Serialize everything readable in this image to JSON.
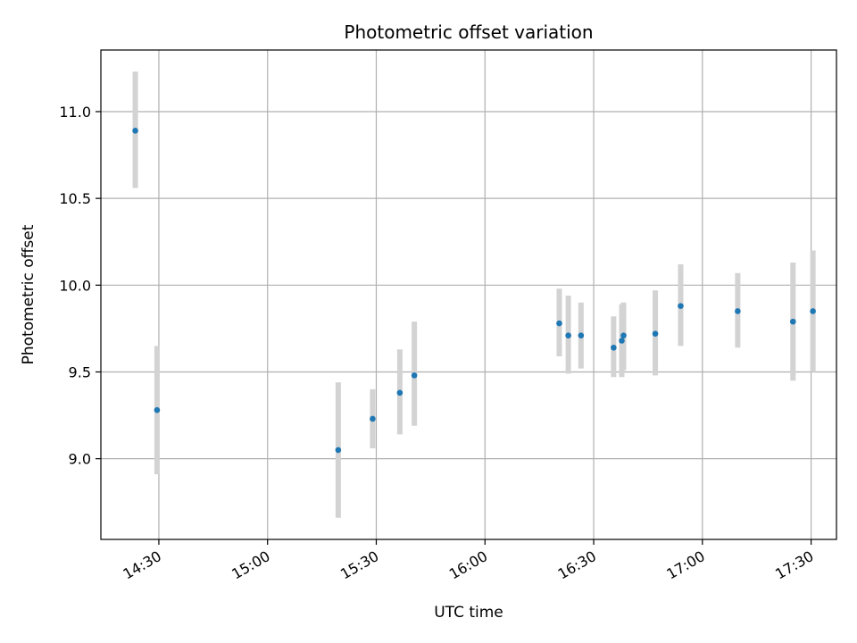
{
  "chart_data": {
    "type": "scatter",
    "title": "Photometric offset variation",
    "xlabel": "UTC time",
    "ylabel": "Photometric offset",
    "x_tick_labels": [
      "14:30",
      "15:00",
      "15:30",
      "16:00",
      "16:30",
      "17:00",
      "17:30"
    ],
    "y_tick_labels": [
      "9.0",
      "9.5",
      "10.0",
      "10.5",
      "11.0"
    ],
    "grid": true,
    "colors": {
      "marker": "#1f77b4",
      "errorbar": "#d3d3d3",
      "grid": "#b0b0b0"
    },
    "points": [
      {
        "x": "14:23:30",
        "y": 10.89,
        "ylow": 10.56,
        "yhigh": 11.23
      },
      {
        "x": "14:29:30",
        "y": 9.28,
        "ylow": 8.91,
        "yhigh": 9.65
      },
      {
        "x": "15:19:30",
        "y": 9.05,
        "ylow": 8.66,
        "yhigh": 9.44
      },
      {
        "x": "15:29:00",
        "y": 9.23,
        "ylow": 9.06,
        "yhigh": 9.4
      },
      {
        "x": "15:36:30",
        "y": 9.38,
        "ylow": 9.14,
        "yhigh": 9.63
      },
      {
        "x": "15:40:30",
        "y": 9.48,
        "ylow": 9.19,
        "yhigh": 9.79
      },
      {
        "x": "16:20:30",
        "y": 9.78,
        "ylow": 9.59,
        "yhigh": 9.98
      },
      {
        "x": "16:23:00",
        "y": 9.71,
        "ylow": 9.49,
        "yhigh": 9.94
      },
      {
        "x": "16:26:30",
        "y": 9.71,
        "ylow": 9.52,
        "yhigh": 9.9
      },
      {
        "x": "16:35:30",
        "y": 9.64,
        "ylow": 9.47,
        "yhigh": 9.82
      },
      {
        "x": "16:37:45",
        "y": 9.68,
        "ylow": 9.47,
        "yhigh": 9.89
      },
      {
        "x": "16:38:15",
        "y": 9.71,
        "ylow": 9.51,
        "yhigh": 9.9
      },
      {
        "x": "16:47:00",
        "y": 9.72,
        "ylow": 9.48,
        "yhigh": 9.97
      },
      {
        "x": "16:54:00",
        "y": 9.88,
        "ylow": 9.65,
        "yhigh": 10.12
      },
      {
        "x": "17:09:45",
        "y": 9.85,
        "ylow": 9.64,
        "yhigh": 10.07
      },
      {
        "x": "17:25:00",
        "y": 9.79,
        "ylow": 9.45,
        "yhigh": 10.13
      },
      {
        "x": "17:30:30",
        "y": 9.85,
        "ylow": 9.5,
        "yhigh": 10.2
      }
    ]
  }
}
